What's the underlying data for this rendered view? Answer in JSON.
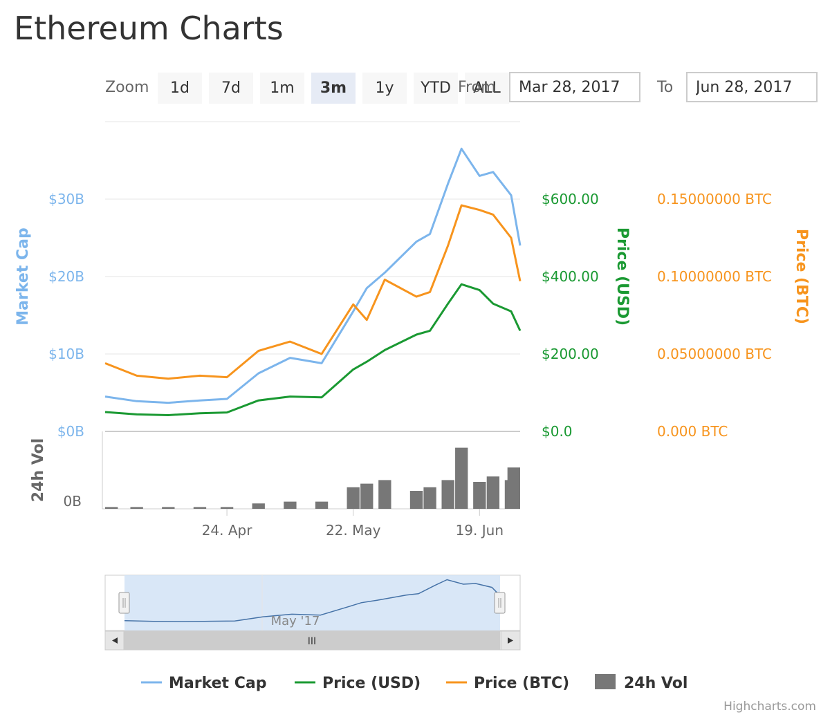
{
  "page": {
    "title": "Ethereum Charts",
    "credit": "Highcharts.com"
  },
  "range_selector": {
    "zoom_label": "Zoom",
    "buttons": [
      {
        "label": "1d",
        "active": false
      },
      {
        "label": "7d",
        "active": false
      },
      {
        "label": "1m",
        "active": false
      },
      {
        "label": "3m",
        "active": true
      },
      {
        "label": "1y",
        "active": false
      },
      {
        "label": "YTD",
        "active": false
      },
      {
        "label": "ALL",
        "active": false
      }
    ],
    "from_label": "From",
    "from_value": "Mar 28, 2017",
    "to_label": "To",
    "to_value": "Jun 28, 2017"
  },
  "navigator": {
    "tick_label": "May '17",
    "scrollbar_grip": "III"
  },
  "colors": {
    "market_cap": "#7cb5ec",
    "price_usd": "#1a9932",
    "price_btc": "#f7941d",
    "volume": "#777777",
    "grid": "#e6e6e6",
    "navigator_fill": "#d5e4f6"
  },
  "chart_data": {
    "type": "line",
    "x": [
      "2017-03-28",
      "2017-04-04",
      "2017-04-11",
      "2017-04-18",
      "2017-04-24",
      "2017-05-01",
      "2017-05-08",
      "2017-05-15",
      "2017-05-22",
      "2017-05-25",
      "2017-05-29",
      "2017-06-05",
      "2017-06-08",
      "2017-06-12",
      "2017-06-15",
      "2017-06-19",
      "2017-06-22",
      "2017-06-26",
      "2017-06-28"
    ],
    "series": [
      {
        "name": "Market Cap",
        "axis": "Market Cap",
        "values": [
          4.5,
          3.9,
          3.7,
          4.0,
          4.2,
          7.5,
          9.5,
          8.8,
          15.5,
          18.5,
          20.5,
          24.5,
          25.5,
          32.0,
          36.5,
          33.0,
          33.5,
          30.5,
          24.0
        ]
      },
      {
        "name": "Price (USD)",
        "axis": "Price (USD)",
        "values": [
          50,
          44,
          42,
          47,
          49,
          80,
          90,
          88,
          160,
          180,
          210,
          250,
          260,
          330,
          380,
          365,
          330,
          310,
          260
        ]
      },
      {
        "name": "Price (BTC)",
        "axis": "Price (BTC)",
        "values": [
          0.044,
          0.036,
          0.034,
          0.036,
          0.035,
          0.052,
          0.058,
          0.05,
          0.082,
          0.072,
          0.098,
          0.087,
          0.09,
          0.12,
          0.146,
          0.143,
          0.14,
          0.125,
          0.097
        ]
      },
      {
        "name": "24h Vol",
        "axis": "24h Vol",
        "type": "column",
        "values": [
          0.1,
          0.1,
          0.1,
          0.1,
          0.1,
          0.3,
          0.4,
          0.4,
          1.2,
          1.4,
          1.6,
          1.0,
          1.2,
          1.6,
          3.4,
          1.5,
          1.8,
          1.6,
          2.3
        ]
      }
    ],
    "xaxis": {
      "ticks": [
        "24. Apr",
        "22. May",
        "19. Jun"
      ],
      "tick_x": [
        "2017-04-24",
        "2017-05-22",
        "2017-06-19"
      ]
    },
    "yaxes": [
      {
        "title": "Market Cap",
        "range": [
          0,
          40
        ],
        "tick_values": [
          0,
          10,
          20,
          30
        ],
        "ticks": [
          "$0B",
          "$10B",
          "$20B",
          "$30B"
        ],
        "side": "left"
      },
      {
        "title": "Price (USD)",
        "range": [
          0,
          800
        ],
        "tick_values": [
          0,
          200,
          400,
          600
        ],
        "ticks": [
          "$0.0",
          "$200.00",
          "$400.00",
          "$600.00"
        ],
        "side": "right"
      },
      {
        "title": "Price (BTC)",
        "range": [
          0,
          0.2
        ],
        "tick_values": [
          0,
          0.05,
          0.1,
          0.15
        ],
        "ticks": [
          "0.000 BTC",
          "0.05000000 BTC",
          "0.10000000 BTC",
          "0.15000000 BTC"
        ],
        "side": "right"
      },
      {
        "title": "24h Vol",
        "range": [
          0,
          4
        ],
        "tick_values": [
          0
        ],
        "ticks": [
          "0B"
        ],
        "side": "left"
      }
    ],
    "grid": true,
    "legend": {
      "placement": "bottom",
      "items": [
        "Market Cap",
        "Price (USD)",
        "Price (BTC)",
        "24h Vol"
      ]
    }
  }
}
